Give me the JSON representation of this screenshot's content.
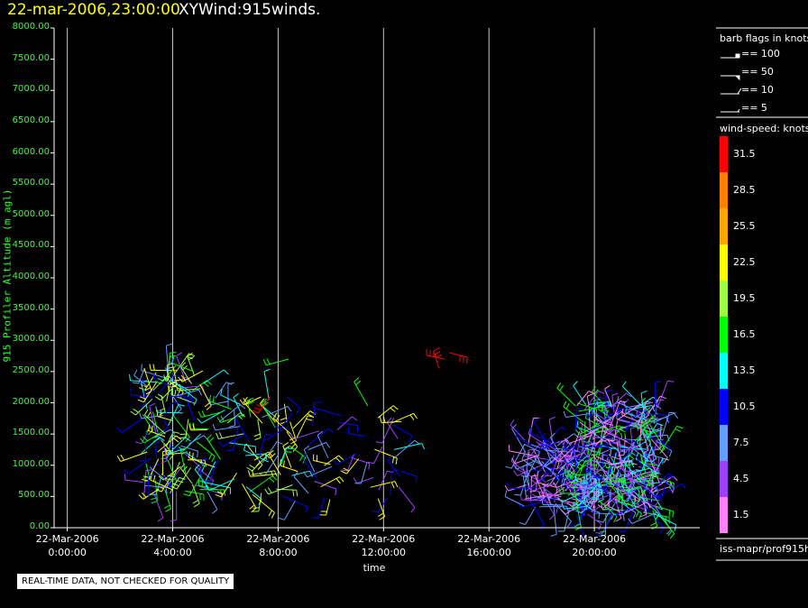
{
  "header": {
    "date": "22-mar-2006,23:00:00",
    "title": "XYWind:915winds."
  },
  "chart_data": {
    "type": "scatter",
    "title": "XYWind:915winds.",
    "xlabel": "time",
    "ylabel": "915 Profiler Altitude (m agl)",
    "ylim": [
      0,
      8000
    ],
    "xlim_hours": [
      -0.5,
      24.0
    ],
    "yticks": [
      "0.00",
      "500.00",
      "1000.00",
      "1500.00",
      "2000.00",
      "2500.00",
      "3000.00",
      "3500.00",
      "4000.00",
      "4500.00",
      "5000.00",
      "5500.00",
      "6000.00",
      "6500.00",
      "7000.00",
      "7500.00",
      "8000.00"
    ],
    "xticks": [
      {
        "hour": 0,
        "date": "22-Mar-2006",
        "time": "0:00:00"
      },
      {
        "hour": 4,
        "date": "22-Mar-2006",
        "time": "4:00:00"
      },
      {
        "hour": 8,
        "date": "22-Mar-2006",
        "time": "8:00:00"
      },
      {
        "hour": 12,
        "date": "22-Mar-2006",
        "time": "12:00:00"
      },
      {
        "hour": 16,
        "date": "22-Mar-2006",
        "time": "16:00:00"
      },
      {
        "hour": 20,
        "date": "22-Mar-2006",
        "time": "20:00:00"
      }
    ],
    "grid": "vertical",
    "clusters": [
      {
        "t0": 2.8,
        "t1": 5.2,
        "a0": 400,
        "a1": 2600,
        "n": 120,
        "speeds": [
          4.5,
          7.5,
          10.5,
          13.5,
          16.5,
          19.5,
          22.5
        ]
      },
      {
        "t0": 5.2,
        "t1": 8.6,
        "a0": 500,
        "a1": 2100,
        "n": 70,
        "speeds": [
          7.5,
          10.5,
          13.5,
          16.5,
          19.5,
          22.5
        ]
      },
      {
        "t0": 8.6,
        "t1": 12.9,
        "a0": 400,
        "a1": 1800,
        "n": 45,
        "speeds": [
          10.5,
          7.5,
          4.5,
          22.5
        ]
      },
      {
        "t0": 17.3,
        "t1": 19.2,
        "a0": 300,
        "a1": 1400,
        "n": 110,
        "speeds": [
          1.5,
          4.5,
          7.5,
          10.5
        ]
      },
      {
        "t0": 19.2,
        "t1": 22.6,
        "a0": 200,
        "a1": 2000,
        "n": 360,
        "speeds": [
          1.5,
          4.5,
          7.5,
          10.5,
          13.5,
          16.5
        ]
      }
    ],
    "barbs": [
      {
        "t": 8.4,
        "alt": 2700,
        "speed": 16.5
      },
      {
        "t": 11.4,
        "alt": 1950,
        "speed": 16.5
      },
      {
        "t": 14.1,
        "alt": 2550,
        "speed": 31.5
      },
      {
        "t": 14.3,
        "alt": 2700,
        "speed": 31.5
      },
      {
        "t": 14.5,
        "alt": 2800,
        "speed": 31.5
      },
      {
        "t": 4.8,
        "alt": 2500,
        "speed": 16.5
      },
      {
        "t": 7.7,
        "alt": 2100,
        "speed": 31.5
      },
      {
        "t": 12.4,
        "alt": 1250,
        "speed": 13.5
      }
    ],
    "barb_legend": {
      "title": "barb flags in knots",
      "entries": [
        "== 100",
        "== 50",
        "== 10",
        "== 5"
      ]
    },
    "colorbar": {
      "title": "wind-speed: knots",
      "levels": [
        {
          "label": "31.5",
          "color": "#ff0000"
        },
        {
          "label": "28.5",
          "color": "#ff7f00"
        },
        {
          "label": "25.5",
          "color": "#ffa500"
        },
        {
          "label": "22.5",
          "color": "#ffff00"
        },
        {
          "label": "19.5",
          "color": "#a0ff40"
        },
        {
          "label": "16.5",
          "color": "#00ff00"
        },
        {
          "label": "13.5",
          "color": "#00ffff"
        },
        {
          "label": "10.5",
          "color": "#0000ff"
        },
        {
          "label": "7.5",
          "color": "#5f9fff"
        },
        {
          "label": "4.5",
          "color": "#9f3fff"
        },
        {
          "label": "1.5",
          "color": "#ff80ff"
        }
      ]
    }
  },
  "footer": {
    "source": "iss-mapr/prof915h",
    "qc_note": "REAL-TIME DATA, NOT CHECKED FOR QUALITY"
  }
}
